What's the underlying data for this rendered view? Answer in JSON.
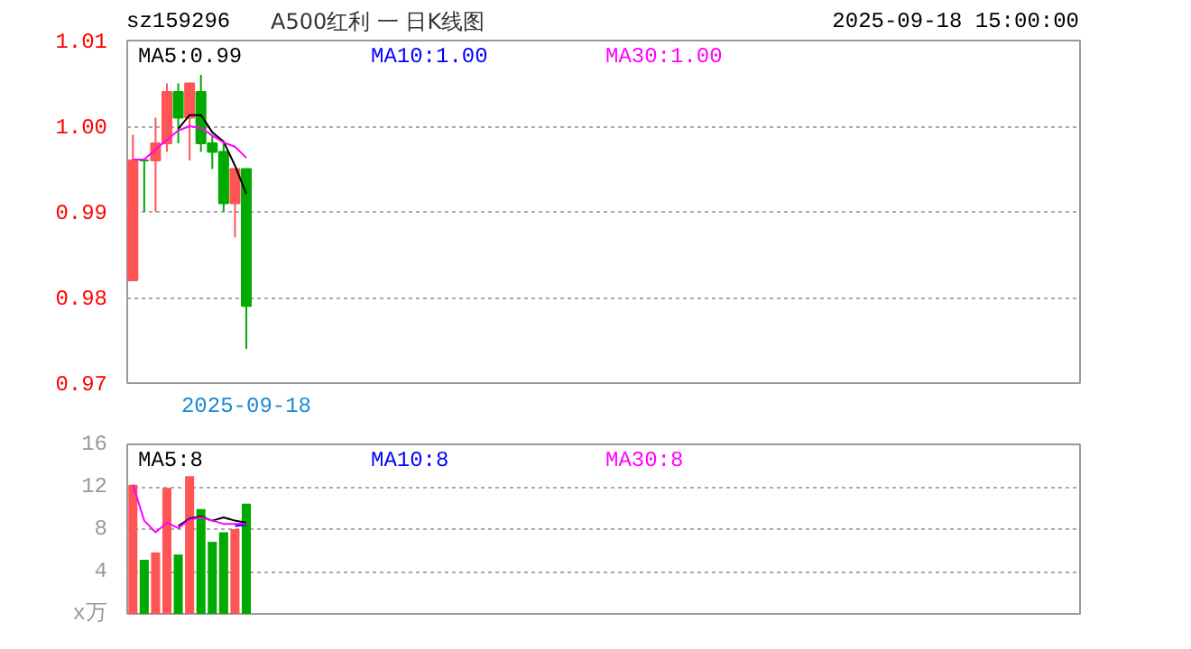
{
  "chart_data": [
    {
      "type": "candlestick",
      "title": "A500红利 一 日K线图",
      "subtitle": "sz159296",
      "annotations": [
        "2025-09-18 15:00:00"
      ],
      "categories": [
        null,
        null,
        null,
        null,
        null,
        null,
        null,
        null,
        null,
        null,
        "2025-09-18",
        null,
        null,
        null,
        null,
        null,
        null,
        null,
        null,
        null,
        null,
        null,
        null,
        null,
        null,
        null,
        null,
        null,
        null,
        null,
        null,
        null,
        null,
        null,
        null,
        null,
        null,
        null,
        null,
        null,
        null,
        null,
        null,
        null,
        null,
        null,
        null,
        null,
        null,
        null,
        null,
        null,
        null,
        null,
        null,
        null,
        null,
        null,
        null,
        null,
        null,
        null,
        null,
        null,
        null,
        null,
        null,
        null,
        null,
        null,
        null,
        null,
        null,
        null,
        null,
        null,
        null,
        null,
        null,
        null,
        null,
        null,
        null,
        null
      ],
      "ohlc": [
        [
          0.982,
          0.999,
          0.982,
          0.996
        ],
        [
          0.996,
          0.996,
          0.99,
          0.996
        ],
        [
          0.996,
          1.001,
          0.99,
          0.998
        ],
        [
          0.998,
          1.005,
          0.997,
          1.004
        ],
        [
          1.004,
          1.005,
          0.998,
          1.001
        ],
        [
          1.001,
          1.005,
          0.996,
          1.005
        ],
        [
          1.004,
          1.006,
          0.997,
          0.998
        ],
        [
          0.998,
          0.999,
          0.995,
          0.997
        ],
        [
          0.997,
          0.998,
          0.99,
          0.991
        ],
        [
          0.991,
          0.995,
          0.987,
          0.995
        ],
        [
          0.995,
          0.995,
          0.974,
          0.979
        ],
        null,
        null,
        null,
        null,
        null,
        null,
        null,
        null,
        null,
        null,
        null,
        null,
        null,
        null,
        null,
        null,
        null,
        null,
        null,
        null,
        null,
        null,
        null,
        null,
        null,
        null,
        null,
        null,
        null,
        null,
        null,
        null,
        null,
        null,
        null,
        null,
        null,
        null,
        null,
        null,
        null,
        null,
        null,
        null,
        null,
        null,
        null,
        null,
        null,
        null,
        null,
        null,
        null,
        null,
        null,
        null,
        null,
        null,
        null,
        null,
        null,
        null,
        null,
        null,
        null,
        null,
        null,
        null,
        null,
        null,
        null,
        null,
        null
      ],
      "colors": [
        "#ff5555",
        "#00aa00",
        "#ff5555",
        "#ff5555",
        "#00aa00",
        "#ff5555",
        "#00aa00",
        "#00aa00",
        "#00aa00",
        "#ff5555",
        "#00aa00",
        null,
        null,
        null,
        null,
        null,
        null,
        null,
        null,
        null,
        null,
        null,
        null,
        null,
        null,
        null,
        null,
        null,
        null,
        null,
        null,
        null,
        null,
        null,
        null,
        null,
        null,
        null,
        null,
        null,
        null,
        null,
        null,
        null,
        null,
        null,
        null,
        null,
        null,
        null,
        null,
        null,
        null,
        null,
        null,
        null,
        null,
        null,
        null,
        null,
        null,
        null,
        null,
        null,
        null,
        null,
        null,
        null,
        null,
        null,
        null,
        null,
        null,
        null,
        null,
        null,
        null,
        null,
        null,
        null,
        null,
        null,
        null,
        null
      ],
      "series": [
        {
          "type": "line",
          "name": "MA5:0.99",
          "color": "#000000",
          "values": [
            null,
            null,
            null,
            null,
            0.9997,
            1.0013,
            1.0013,
            0.9993,
            0.9982,
            0.9954,
            0.9921,
            null,
            null,
            null,
            null,
            null,
            null,
            null,
            null,
            null,
            null,
            null,
            null,
            null,
            null,
            null,
            null,
            null,
            null,
            null,
            null,
            null,
            null,
            null,
            null,
            null,
            null,
            null,
            null,
            null,
            null,
            null,
            null,
            null,
            null,
            null,
            null,
            null,
            null,
            null,
            null,
            null,
            null,
            null,
            null,
            null,
            null,
            null,
            null,
            null,
            null,
            null,
            null,
            null,
            null,
            null,
            null,
            null,
            null,
            null,
            null,
            null,
            null,
            null,
            null,
            null,
            null,
            null,
            null,
            null,
            null,
            null,
            null,
            null
          ]
        },
        {
          "type": "line",
          "name": "MA10:1.00",
          "color": "#0000ff",
          "values": [
            null,
            null,
            null,
            null,
            null,
            null,
            null,
            null,
            null,
            null,
            null,
            null,
            null,
            null,
            null,
            null,
            null,
            null,
            null,
            null,
            null,
            null,
            null,
            null,
            null,
            null,
            null,
            null,
            null,
            null,
            null,
            null,
            null,
            null,
            null,
            null,
            null,
            null,
            null,
            null,
            null,
            null,
            null,
            null,
            null,
            null,
            null,
            null,
            null,
            null,
            null,
            null,
            null,
            null,
            null,
            null,
            null,
            null,
            null,
            null,
            null,
            null,
            null,
            null,
            null,
            null,
            null,
            null,
            null,
            null,
            null,
            null,
            null,
            null,
            null,
            null,
            null,
            null,
            null,
            null,
            null,
            null,
            null,
            null
          ]
        },
        {
          "type": "line",
          "name": "MA30:1.00",
          "color": "#ff00ff",
          "values": [
            0.9961,
            0.9961,
            0.9973,
            0.9984,
            0.9995,
            1.0,
            0.9998,
            0.9989,
            0.9981,
            0.9976,
            0.9963,
            null,
            null,
            null,
            null,
            null,
            null,
            null,
            null,
            null,
            null,
            null,
            null,
            null,
            null,
            null,
            null,
            null,
            null,
            null,
            null,
            null,
            null,
            null,
            null,
            null,
            null,
            null,
            null,
            null,
            null,
            null,
            null,
            null,
            null,
            null,
            null,
            null,
            null,
            null,
            null,
            null,
            null,
            null,
            null,
            null,
            null,
            null,
            null,
            null,
            null,
            null,
            null,
            null,
            null,
            null,
            null,
            null,
            null,
            null,
            null,
            null,
            null,
            null,
            null,
            null,
            null,
            null,
            null,
            null,
            null,
            null,
            null,
            null
          ]
        }
      ],
      "ylim": [
        0.97,
        1.01
      ],
      "yticks": [
        0.97,
        0.98,
        0.99,
        {
          "value": 1.0,
          "label": "1.00"
        },
        1.01
      ],
      "grid": "y",
      "legend": "top"
    },
    {
      "type": "bar",
      "categories": [
        null,
        null,
        null,
        null,
        null,
        null,
        null,
        null,
        null,
        null,
        null,
        null,
        null,
        null,
        null,
        null,
        null,
        null,
        null,
        null,
        null,
        null,
        null,
        null,
        null,
        null,
        null,
        null,
        null,
        null,
        null,
        null,
        null,
        null,
        null,
        null,
        null,
        null,
        null,
        null,
        null,
        null,
        null,
        null,
        null,
        null,
        null,
        null,
        null,
        null,
        null,
        null,
        null,
        null,
        null,
        null,
        null,
        null,
        null,
        null,
        null,
        null,
        null,
        null,
        null,
        null,
        null,
        null,
        null,
        null,
        null,
        null,
        null,
        null,
        null,
        null,
        null,
        null,
        null,
        null,
        null,
        null,
        null,
        null
      ],
      "series": [
        {
          "type": "bar",
          "values": [
            12.2,
            5.1,
            5.8,
            11.9,
            5.6,
            13.0,
            9.9,
            6.8,
            7.7,
            8.0,
            10.4,
            null,
            null,
            null,
            null,
            null,
            null,
            null,
            null,
            null,
            null,
            null,
            null,
            null,
            null,
            null,
            null,
            null,
            null,
            null,
            null,
            null,
            null,
            null,
            null,
            null,
            null,
            null,
            null,
            null,
            null,
            null,
            null,
            null,
            null,
            null,
            null,
            null,
            null,
            null,
            null,
            null,
            null,
            null,
            null,
            null,
            null,
            null,
            null,
            null,
            null,
            null,
            null,
            null,
            null,
            null,
            null,
            null,
            null,
            null,
            null,
            null,
            null,
            null,
            null,
            null,
            null,
            null,
            null,
            null,
            null,
            null,
            null,
            null
          ],
          "colors": [
            "#ff5555",
            "#00aa00",
            "#ff5555",
            "#ff5555",
            "#00aa00",
            "#ff5555",
            "#00aa00",
            "#00aa00",
            "#00aa00",
            "#ff5555",
            "#00aa00",
            null,
            null,
            null,
            null,
            null,
            null,
            null,
            null,
            null,
            null,
            null,
            null,
            null,
            null,
            null,
            null,
            null,
            null,
            null,
            null,
            null,
            null,
            null,
            null,
            null,
            null,
            null,
            null,
            null,
            null,
            null,
            null,
            null,
            null,
            null,
            null,
            null,
            null,
            null,
            null,
            null,
            null,
            null,
            null,
            null,
            null,
            null,
            null,
            null,
            null,
            null,
            null,
            null,
            null,
            null,
            null,
            null,
            null,
            null,
            null,
            null,
            null,
            null,
            null,
            null,
            null,
            null,
            null,
            null,
            null,
            null,
            null,
            null
          ]
        },
        {
          "type": "line",
          "name": "MA5:8",
          "color": "#000000",
          "values": [
            null,
            null,
            null,
            null,
            8.3,
            9.0,
            9.2,
            8.8,
            9.1,
            8.8,
            8.6,
            null,
            null,
            null,
            null,
            null,
            null,
            null,
            null,
            null,
            null,
            null,
            null,
            null,
            null,
            null,
            null,
            null,
            null,
            null,
            null,
            null,
            null,
            null,
            null,
            null,
            null,
            null,
            null,
            null,
            null,
            null,
            null,
            null,
            null,
            null,
            null,
            null,
            null,
            null,
            null,
            null,
            null,
            null,
            null,
            null,
            null,
            null,
            null,
            null,
            null,
            null,
            null,
            null,
            null,
            null,
            null,
            null,
            null,
            null,
            null,
            null,
            null,
            null,
            null,
            null,
            null,
            null,
            null,
            null,
            null,
            null,
            null,
            null
          ]
        },
        {
          "type": "line",
          "name": "MA10:8",
          "color": "#0000ff",
          "values": [
            null,
            null,
            null,
            null,
            null,
            null,
            null,
            null,
            null,
            8.3,
            8.4,
            null,
            null,
            null,
            null,
            null,
            null,
            null,
            null,
            null,
            null,
            null,
            null,
            null,
            null,
            null,
            null,
            null,
            null,
            null,
            null,
            null,
            null,
            null,
            null,
            null,
            null,
            null,
            null,
            null,
            null,
            null,
            null,
            null,
            null,
            null,
            null,
            null,
            null,
            null,
            null,
            null,
            null,
            null,
            null,
            null,
            null,
            null,
            null,
            null,
            null,
            null,
            null,
            null,
            null,
            null,
            null,
            null,
            null,
            null,
            null,
            null,
            null,
            null,
            null,
            null,
            null,
            null,
            null,
            null,
            null,
            null,
            null,
            null
          ]
        },
        {
          "type": "line",
          "name": "MA30:8",
          "color": "#ff00ff",
          "values": [
            12.2,
            8.8,
            7.7,
            8.6,
            8.1,
            8.9,
            9.1,
            8.8,
            8.5,
            8.5,
            8.5,
            null,
            null,
            null,
            null,
            null,
            null,
            null,
            null,
            null,
            null,
            null,
            null,
            null,
            null,
            null,
            null,
            null,
            null,
            null,
            null,
            null,
            null,
            null,
            null,
            null,
            null,
            null,
            null,
            null,
            null,
            null,
            null,
            null,
            null,
            null,
            null,
            null,
            null,
            null,
            null,
            null,
            null,
            null,
            null,
            null,
            null,
            null,
            null,
            null,
            null,
            null,
            null,
            null,
            null,
            null,
            null,
            null,
            null,
            null,
            null,
            null,
            null,
            null,
            null,
            null,
            null,
            null,
            null,
            null,
            null,
            null,
            null,
            null
          ]
        }
      ],
      "ylim": [
        0,
        16
      ],
      "yticks": [
        {
          "value": 0,
          "label": "x万"
        },
        4,
        8,
        12,
        16
      ],
      "grid": "y",
      "legend": "top",
      "tick_labels": "y"
    }
  ]
}
